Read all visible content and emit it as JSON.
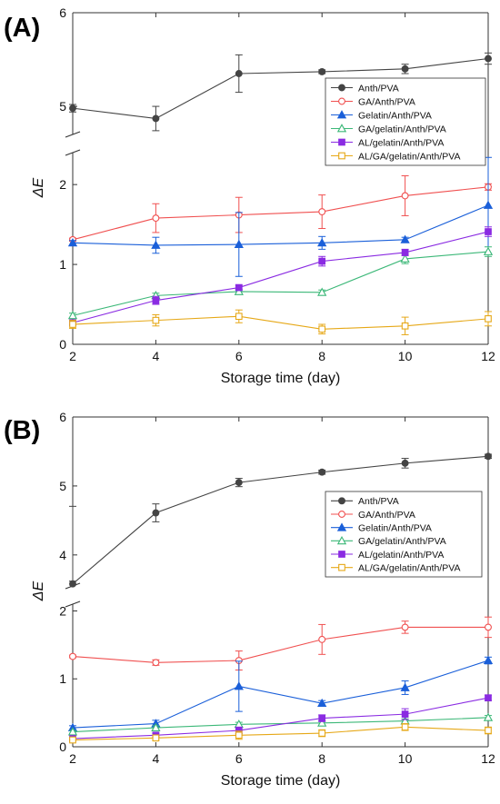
{
  "chart_data": [
    {
      "type": "line",
      "panel_label": "(A)",
      "xlabel": "Storage time (day)",
      "ylabel": "ΔE",
      "x": [
        2,
        4,
        6,
        8,
        10,
        12
      ],
      "xticks": [
        "2",
        "4",
        "6",
        "8",
        "10",
        "12"
      ],
      "y_axis_broken": true,
      "lower_ylim": [
        0,
        2.4
      ],
      "upper_ylim": [
        4.7,
        6
      ],
      "yticks_lower": [
        "0",
        "1",
        "2"
      ],
      "yticks_upper": [
        "5",
        "6"
      ],
      "legend_position": "top-right",
      "series": [
        {
          "name": "Anth/PVA",
          "color": "#444444",
          "marker": "circle-filled",
          "values": [
            4.98,
            4.87,
            5.35,
            5.37,
            5.4,
            5.51
          ],
          "errors": [
            0.04,
            0.13,
            0.2,
            0.02,
            0.05,
            0.06
          ]
        },
        {
          "name": "GA/Anth/PVA",
          "color": "#f05050",
          "marker": "circle-open",
          "values": [
            1.31,
            1.58,
            1.62,
            1.66,
            1.86,
            1.97
          ],
          "errors": [
            0.02,
            0.18,
            0.22,
            0.21,
            0.25,
            0.04
          ]
        },
        {
          "name": "Gelatin/Anth/PVA",
          "color": "#1a5fd9",
          "marker": "triangle-filled",
          "values": [
            1.27,
            1.24,
            1.25,
            1.27,
            1.31,
            1.74
          ],
          "errors": [
            0.03,
            0.1,
            0.4,
            0.08,
            0.03,
            0.6
          ]
        },
        {
          "name": "GA/gelatin/Anth/PVA",
          "color": "#3cb878",
          "marker": "triangle-open",
          "values": [
            0.36,
            0.61,
            0.66,
            0.65,
            1.07,
            1.16
          ],
          "errors": [
            0.03,
            0.03,
            0.03,
            0.03,
            0.06,
            0.06
          ]
        },
        {
          "name": "AL/gelatin/Anth/PVA",
          "color": "#8a2be2",
          "marker": "square-filled",
          "values": [
            0.27,
            0.55,
            0.71,
            1.04,
            1.15,
            1.41
          ],
          "errors": [
            0.03,
            0.05,
            0.03,
            0.06,
            0.04,
            0.06
          ]
        },
        {
          "name": "AL/GA/gelatin/Anth/PVA",
          "color": "#e6a817",
          "marker": "square-open",
          "values": [
            0.25,
            0.3,
            0.35,
            0.19,
            0.23,
            0.32
          ],
          "errors": [
            0.05,
            0.07,
            0.08,
            0.06,
            0.11,
            0.09
          ]
        }
      ]
    },
    {
      "type": "line",
      "panel_label": "(B)",
      "xlabel": "Storage time (day)",
      "ylabel": "ΔE",
      "x": [
        2,
        4,
        6,
        8,
        10,
        12
      ],
      "xticks": [
        "2",
        "4",
        "6",
        "8",
        "10",
        "12"
      ],
      "y_axis_broken": true,
      "lower_ylim": [
        0,
        2.1
      ],
      "upper_ylim": [
        3.55,
        6
      ],
      "yticks_lower": [
        "0",
        "1",
        "2"
      ],
      "yticks_upper": [
        "4",
        "5",
        "6"
      ],
      "legend_position": "top-right",
      "series": [
        {
          "name": "Anth/PVA",
          "color": "#444444",
          "marker": "circle-filled",
          "values": [
            3.58,
            4.61,
            5.05,
            5.2,
            5.33,
            5.43
          ],
          "errors": [
            0.04,
            0.13,
            0.06,
            0.03,
            0.07,
            0.03
          ]
        },
        {
          "name": "GA/Anth/PVA",
          "color": "#f05050",
          "marker": "circle-open",
          "values": [
            1.33,
            1.24,
            1.27,
            1.58,
            1.76,
            1.76
          ],
          "errors": [
            0.02,
            0.04,
            0.14,
            0.22,
            0.09,
            0.15
          ]
        },
        {
          "name": "Gelatin/Anth/PVA",
          "color": "#1a5fd9",
          "marker": "triangle-filled",
          "values": [
            0.28,
            0.34,
            0.89,
            0.64,
            0.87,
            1.27
          ],
          "errors": [
            0.03,
            0.05,
            0.37,
            0.04,
            0.1,
            0.05
          ]
        },
        {
          "name": "GA/gelatin/Anth/PVA",
          "color": "#3cb878",
          "marker": "triangle-open",
          "values": [
            0.22,
            0.28,
            0.33,
            0.35,
            0.38,
            0.43
          ],
          "errors": [
            0.02,
            0.03,
            0.03,
            0.03,
            0.03,
            0.03
          ]
        },
        {
          "name": "AL/gelatin/Anth/PVA",
          "color": "#8a2be2",
          "marker": "square-filled",
          "values": [
            0.12,
            0.17,
            0.24,
            0.42,
            0.48,
            0.72
          ],
          "errors": [
            0.02,
            0.03,
            0.05,
            0.05,
            0.08,
            0.04
          ]
        },
        {
          "name": "AL/GA/gelatin/Anth/PVA",
          "color": "#e6a817",
          "marker": "square-open",
          "values": [
            0.1,
            0.13,
            0.17,
            0.2,
            0.29,
            0.24
          ],
          "errors": [
            0.02,
            0.03,
            0.06,
            0.05,
            0.05,
            0.05
          ]
        }
      ]
    }
  ]
}
